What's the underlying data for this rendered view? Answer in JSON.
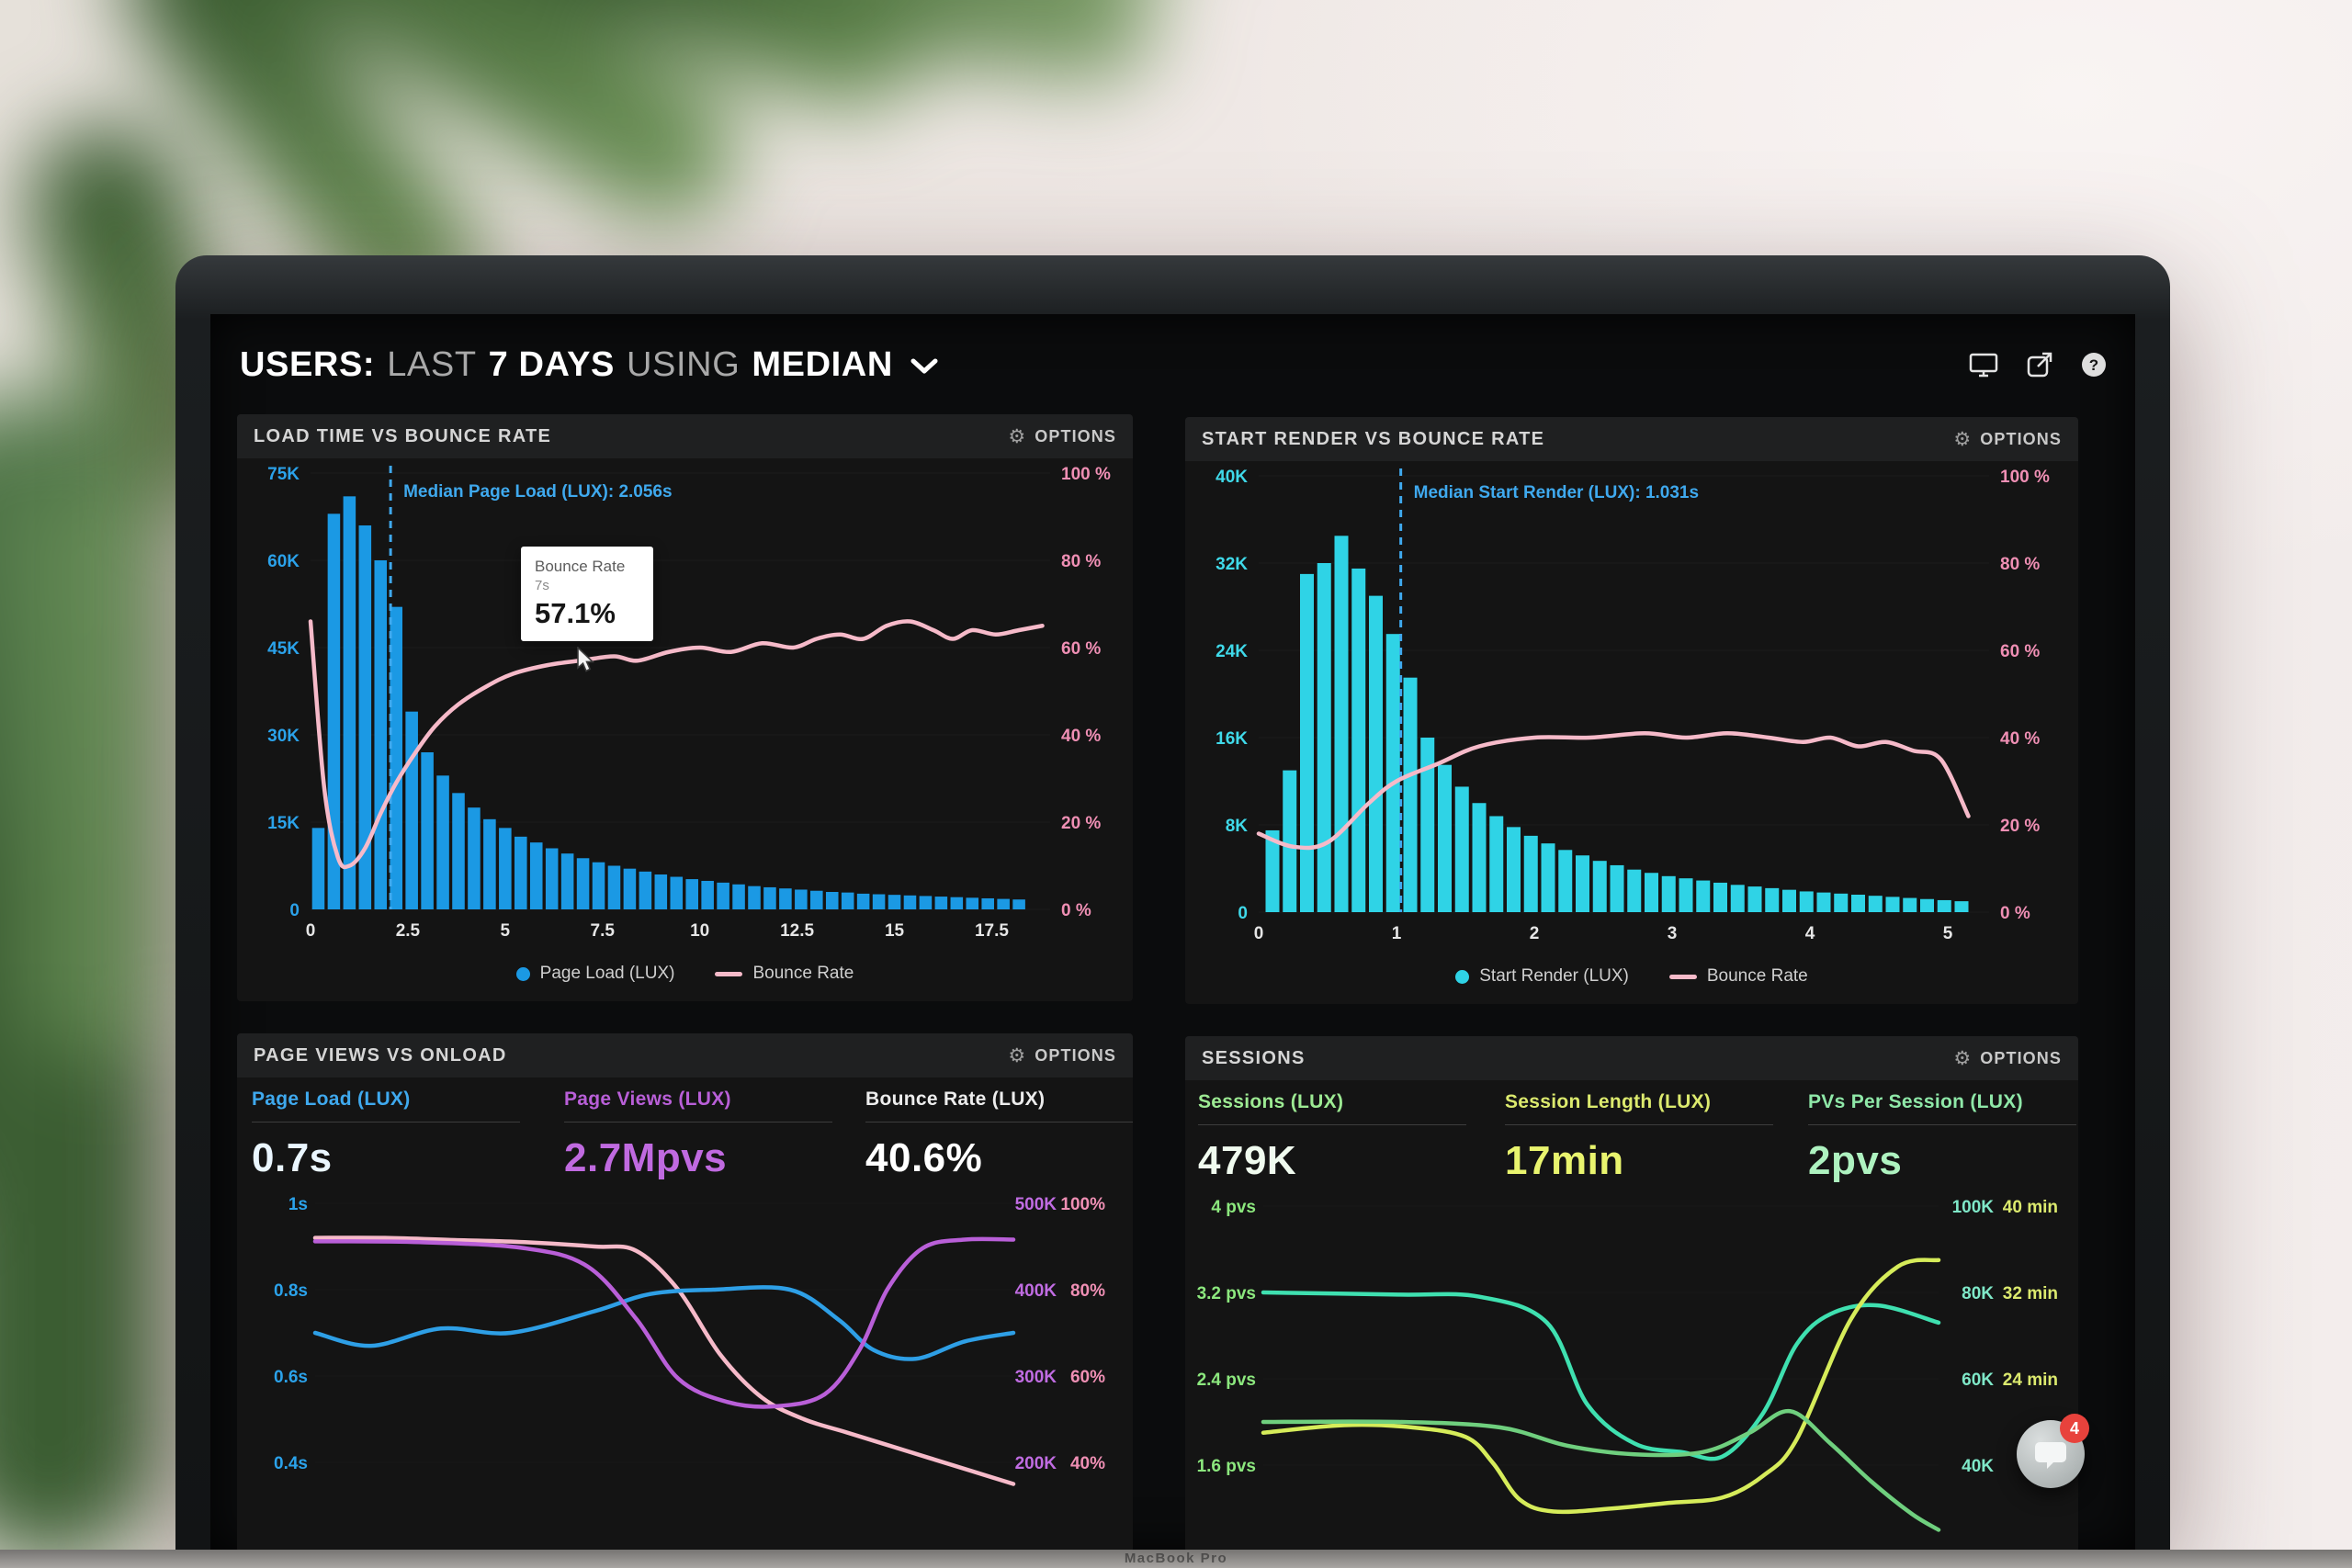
{
  "window": {
    "header": {
      "parts": [
        {
          "text": "USERS:",
          "weight": "bold"
        },
        {
          "text": "LAST",
          "weight": "light"
        },
        {
          "text": "7 DAYS",
          "weight": "bold"
        },
        {
          "text": "USING",
          "weight": "light"
        },
        {
          "text": "MEDIAN",
          "weight": "bold"
        }
      ]
    },
    "bottom_label": "MacBook Pro",
    "chat_badge": "4"
  },
  "chart_data": [
    {
      "id": "load-time-vs-bounce-rate",
      "type": "bar+line",
      "title": "LOAD TIME VS BOUNCE RATE",
      "options_label": "OPTIONS",
      "x_max": 19,
      "left_max": 75,
      "bar_start": 0.2,
      "bar_step": 0.4,
      "left_ticks": [
        "75K",
        "60K",
        "45K",
        "30K",
        "15K",
        "0"
      ],
      "right_ticks": [
        "100 %",
        "80 %",
        "60 %",
        "40 %",
        "20 %",
        "0 %"
      ],
      "x_ticks": [
        "0",
        "2.5",
        "5",
        "7.5",
        "10",
        "12.5",
        "15",
        "17.5"
      ],
      "bars": [
        14,
        68,
        71,
        66,
        60,
        52,
        34,
        27,
        23,
        20,
        17.5,
        15.5,
        14,
        12.5,
        11.5,
        10.5,
        9.6,
        8.8,
        8.1,
        7.5,
        7.0,
        6.5,
        6.0,
        5.6,
        5.2,
        4.9,
        4.6,
        4.3,
        4.0,
        3.8,
        3.6,
        3.4,
        3.2,
        3.0,
        2.9,
        2.7,
        2.6,
        2.5,
        2.4,
        2.3,
        2.2,
        2.1,
        2.0,
        1.9,
        1.8,
        1.7
      ],
      "line": {
        "name": "Bounce Rate",
        "points": [
          [
            0,
            66
          ],
          [
            0.35,
            28
          ],
          [
            0.7,
            12
          ],
          [
            1.0,
            10
          ],
          [
            1.4,
            14
          ],
          [
            1.8,
            22
          ],
          [
            2.2,
            29
          ],
          [
            2.7,
            36
          ],
          [
            3.2,
            42
          ],
          [
            3.8,
            47
          ],
          [
            4.5,
            51
          ],
          [
            5.2,
            54
          ],
          [
            6.1,
            56
          ],
          [
            7,
            57.1
          ],
          [
            7.8,
            58
          ],
          [
            8.4,
            57
          ],
          [
            9.2,
            59
          ],
          [
            10,
            60
          ],
          [
            10.8,
            59
          ],
          [
            11.6,
            61
          ],
          [
            12.4,
            60
          ],
          [
            13,
            62
          ],
          [
            13.6,
            63
          ],
          [
            14.2,
            62
          ],
          [
            14.8,
            65
          ],
          [
            15.4,
            66
          ],
          [
            16,
            64
          ],
          [
            16.5,
            62
          ],
          [
            17,
            64
          ],
          [
            17.6,
            63
          ],
          [
            18.2,
            64
          ],
          [
            18.8,
            65
          ]
        ]
      },
      "median": {
        "value": 2.056,
        "label": "Median Page Load (LUX): 2.056s"
      },
      "tooltip": {
        "label": "Bounce Rate",
        "x": "7s",
        "value": "57.1%"
      },
      "legend": [
        {
          "label": "Page Load (LUX)",
          "color": "#1b99e4",
          "swatch": "dot"
        },
        {
          "label": "Bounce Rate",
          "color": "#f6bac9",
          "swatch": "line"
        }
      ],
      "colors": {
        "bar": "#1b99e4",
        "line": "#f6bac9",
        "median": "#3fa9ee",
        "left_axis": "#2ba2ea",
        "right_axis": "#ef8fb4",
        "x_axis": "#e6e6e6"
      }
    },
    {
      "id": "start-render-vs-bounce-rate",
      "type": "bar+line",
      "title": "START RENDER VS BOUNCE RATE",
      "options_label": "OPTIONS",
      "x_max": 5.3,
      "left_max": 40,
      "bar_start": 0.1,
      "bar_step": 0.125,
      "left_ticks": [
        "40K",
        "32K",
        "24K",
        "16K",
        "8K",
        "0"
      ],
      "right_ticks": [
        "100 %",
        "80 %",
        "60 %",
        "40 %",
        "20 %",
        "0 %"
      ],
      "x_ticks": [
        "0",
        "1",
        "2",
        "3",
        "4",
        "5"
      ],
      "bars": [
        7.5,
        13,
        31,
        32,
        34.5,
        31.5,
        29,
        25.5,
        21.5,
        16,
        13.5,
        11.5,
        10,
        8.8,
        7.8,
        7,
        6.3,
        5.7,
        5.2,
        4.7,
        4.3,
        3.9,
        3.6,
        3.3,
        3.1,
        2.9,
        2.7,
        2.5,
        2.35,
        2.2,
        2.05,
        1.9,
        1.8,
        1.7,
        1.6,
        1.5,
        1.4,
        1.3,
        1.2,
        1.1,
        1.0
      ],
      "line": {
        "name": "Bounce Rate",
        "points": [
          [
            0,
            18
          ],
          [
            0.25,
            15
          ],
          [
            0.5,
            16
          ],
          [
            0.8,
            25
          ],
          [
            1.0,
            30
          ],
          [
            1.3,
            34
          ],
          [
            1.6,
            38
          ],
          [
            2.0,
            40
          ],
          [
            2.4,
            40
          ],
          [
            2.8,
            41
          ],
          [
            3.1,
            40
          ],
          [
            3.4,
            41
          ],
          [
            3.7,
            40
          ],
          [
            3.95,
            39
          ],
          [
            4.15,
            40
          ],
          [
            4.35,
            38
          ],
          [
            4.55,
            39
          ],
          [
            4.75,
            37
          ],
          [
            4.95,
            35
          ],
          [
            5.15,
            22
          ]
        ]
      },
      "median": {
        "value": 1.031,
        "label": "Median Start Render (LUX): 1.031s"
      },
      "legend": [
        {
          "label": "Start Render (LUX)",
          "color": "#2fd3e6",
          "swatch": "dot"
        },
        {
          "label": "Bounce Rate",
          "color": "#f6bac9",
          "swatch": "line"
        }
      ],
      "colors": {
        "bar": "#2fd3e6",
        "line": "#f6bac9",
        "median": "#3fa9ee",
        "left_axis": "#3fd9e9",
        "right_axis": "#ef8fb4",
        "x_axis": "#e6e6e6"
      }
    },
    {
      "id": "page-views-vs-onload",
      "type": "line",
      "title": "PAGE VIEWS VS ONLOAD",
      "options_label": "OPTIONS",
      "metrics": [
        {
          "label": "Page Load (LUX)",
          "value": "0.7s",
          "label_color": "#3fa9ee",
          "value_color": "#eaf6ff"
        },
        {
          "label": "Page Views (LUX)",
          "value": "2.7Mpvs",
          "label_color": "#b95fd8",
          "value_color": "#c06ae0"
        },
        {
          "label": "Bounce Rate (LUX)",
          "value": "40.6%",
          "label_color": "#ededed",
          "value_color": "#ffffff"
        }
      ],
      "left_ticks": [
        "1s",
        "0.8s",
        "0.6s",
        "0.4s"
      ],
      "left_color": "#2ba2ea",
      "right_ticks": [
        {
          "a": "500K",
          "b": "100%"
        },
        {
          "a": "400K",
          "b": "80%"
        },
        {
          "a": "300K",
          "b": "60%"
        },
        {
          "a": "200K",
          "b": "40%"
        }
      ],
      "right_color_a": "#c06ce2",
      "right_color_b": "#ef8fb4",
      "series": [
        {
          "name": "Bounce Rate",
          "color": "#f6bac9",
          "scale": {
            "top": 100,
            "per_row": 20
          },
          "points": [
            [
              0,
              92
            ],
            [
              10,
              92
            ],
            [
              20,
              91.5
            ],
            [
              30,
              91
            ],
            [
              40,
              90
            ],
            [
              46,
              89
            ],
            [
              52,
              80
            ],
            [
              58,
              65
            ],
            [
              64,
              55
            ],
            [
              70,
              50
            ],
            [
              76,
              47
            ],
            [
              82,
              44
            ],
            [
              88,
              41
            ],
            [
              94,
              38
            ],
            [
              100,
              35
            ]
          ]
        },
        {
          "name": "Page Load",
          "color": "#2e9fe6",
          "scale": {
            "top": 1,
            "per_row": 0.2
          },
          "points": [
            [
              0,
              0.7
            ],
            [
              8,
              0.67
            ],
            [
              18,
              0.71
            ],
            [
              28,
              0.7
            ],
            [
              40,
              0.75
            ],
            [
              48,
              0.79
            ],
            [
              57,
              0.8
            ],
            [
              68,
              0.8
            ],
            [
              75,
              0.73
            ],
            [
              80,
              0.66
            ],
            [
              86,
              0.64
            ],
            [
              93,
              0.68
            ],
            [
              100,
              0.7
            ]
          ]
        },
        {
          "name": "Page Views",
          "color": "#b95fd8",
          "scale": {
            "top": 500,
            "per_row": 100
          },
          "points": [
            [
              0,
              456
            ],
            [
              15,
              455
            ],
            [
              30,
              448
            ],
            [
              39,
              427
            ],
            [
              46,
              366
            ],
            [
              52,
              297
            ],
            [
              59,
              270
            ],
            [
              66,
              265
            ],
            [
              73,
              279
            ],
            [
              78,
              331
            ],
            [
              82,
              401
            ],
            [
              87,
              448
            ],
            [
              93,
              458
            ],
            [
              100,
              458
            ]
          ]
        }
      ]
    },
    {
      "id": "sessions",
      "type": "line",
      "title": "SESSIONS",
      "options_label": "OPTIONS",
      "metrics": [
        {
          "label": "Sessions (LUX)",
          "value": "479K",
          "label_color": "#9dea93",
          "value_color": "#f0fbef"
        },
        {
          "label": "Session Length (LUX)",
          "value": "17min",
          "label_color": "#dcea6e",
          "value_color": "#e9f46e"
        },
        {
          "label": "PVs Per Session (LUX)",
          "value": "2pvs",
          "label_color": "#8fe8a8",
          "value_color": "#aef2c0"
        }
      ],
      "left_ticks": [
        "4 pvs",
        "3.2 pvs",
        "2.4 pvs",
        "1.6 pvs"
      ],
      "left_color": "#8ce87e",
      "right_ticks": [
        {
          "a": "100K",
          "b": "40 min"
        },
        {
          "a": "80K",
          "b": "32 min"
        },
        {
          "a": "60K",
          "b": "24 min"
        },
        {
          "a": "40K",
          "b": ""
        }
      ],
      "right_color_a": "#7fe8c8",
      "right_color_b": "#dcea6e",
      "series": [
        {
          "name": "Sessions",
          "color": "#3fe0b0",
          "scale": {
            "top": 100,
            "per_row": 20
          },
          "points": [
            [
              0,
              80
            ],
            [
              20,
              79.5
            ],
            [
              32,
              79
            ],
            [
              42,
              73
            ],
            [
              48,
              54
            ],
            [
              55,
              45
            ],
            [
              62,
              43
            ],
            [
              68,
              42
            ],
            [
              74,
              52
            ],
            [
              79,
              68
            ],
            [
              84,
              75
            ],
            [
              91,
              77
            ],
            [
              100,
              73
            ]
          ]
        },
        {
          "name": "Session Length",
          "color": "#d6ec5a",
          "scale": {
            "top": 40,
            "per_row": 8
          },
          "points": [
            [
              0,
              19
            ],
            [
              12,
              19.7
            ],
            [
              22,
              19.5
            ],
            [
              30,
              18.6
            ],
            [
              34,
              16.2
            ],
            [
              38,
              12.8
            ],
            [
              43,
              11.7
            ],
            [
              52,
              12.0
            ],
            [
              60,
              12.5
            ],
            [
              68,
              13
            ],
            [
              74,
              15
            ],
            [
              79,
              18.4
            ],
            [
              87,
              29.5
            ],
            [
              94,
              34.4
            ],
            [
              100,
              35
            ]
          ]
        },
        {
          "name": "PVs Per Session",
          "color": "#6fcf7e",
          "scale": {
            "top": 4,
            "per_row": 0.8
          },
          "points": [
            [
              0,
              2.0
            ],
            [
              20,
              2.0
            ],
            [
              35,
              1.95
            ],
            [
              45,
              1.78
            ],
            [
              55,
              1.7
            ],
            [
              65,
              1.72
            ],
            [
              72,
              1.9
            ],
            [
              78,
              2.1
            ],
            [
              84,
              1.8
            ],
            [
              90,
              1.45
            ],
            [
              96,
              1.15
            ],
            [
              100,
              1.0
            ]
          ]
        }
      ]
    }
  ]
}
